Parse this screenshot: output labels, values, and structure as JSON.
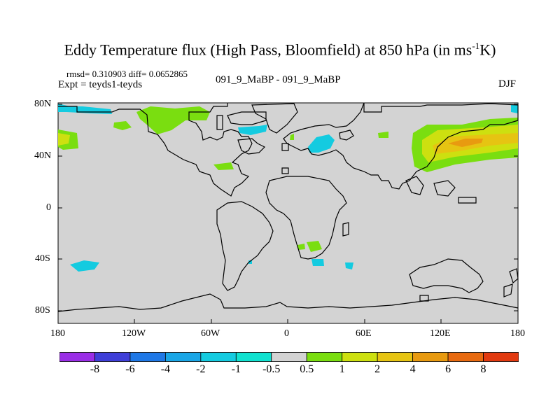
{
  "header": {
    "title_main": "Eddy Temperature flux (High Pass, Bloomfield) at 850 hPa (in ms",
    "title_sup": "-1",
    "title_tail": "K)",
    "stats": "rmsd= 0.310903 diff= 0.0652865",
    "experiment": "Expt = teyds1-teyds",
    "runs": "091_9_MaBP - 091_9_MaBP",
    "season": "DJF"
  },
  "map": {
    "lat_labels": [
      "80N",
      "40N",
      "0",
      "40S",
      "80S"
    ],
    "lon_labels": [
      "180",
      "120W",
      "60W",
      "0",
      "60E",
      "120E",
      "180"
    ],
    "background_color": "#d3d3d3"
  },
  "colorbar": {
    "labels": [
      "-8",
      "-6",
      "-4",
      "-2",
      "-1",
      "-0.5",
      "0.5",
      "1",
      "2",
      "4",
      "6",
      "8"
    ],
    "colors": [
      "#9a2ee6",
      "#3f3fd8",
      "#1f78e6",
      "#1aa6e6",
      "#14cbe0",
      "#10e2d0",
      "#d3d3d3",
      "#7ade10",
      "#cde010",
      "#e6c412",
      "#e89a10",
      "#e86a10",
      "#e23a10"
    ]
  }
}
